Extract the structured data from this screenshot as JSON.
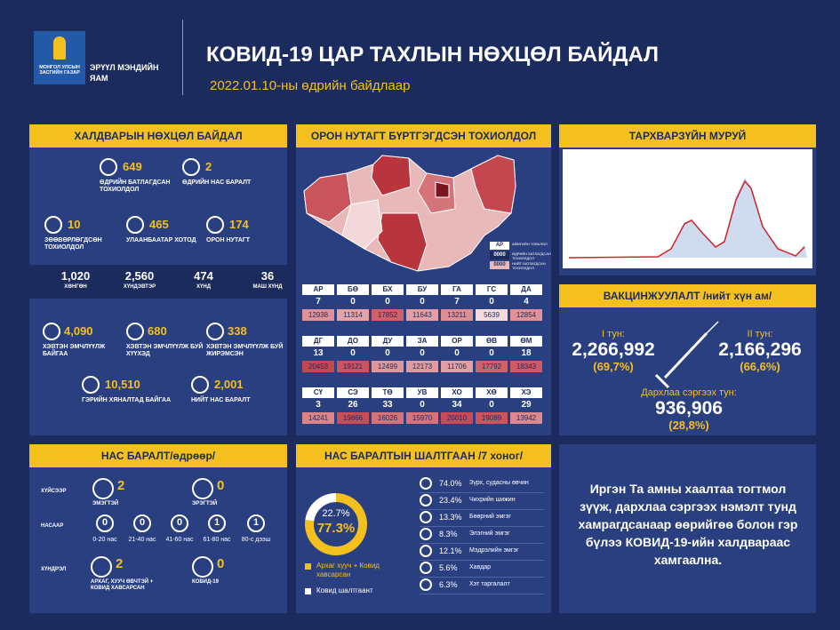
{
  "header": {
    "government": "МОНГОЛ УЛСЫН ЗАСГИЙН ГАЗАР",
    "ministry": "ЭРҮҮЛ МЭНДИЙН ЯАМ",
    "title": "КОВИД-19 ЦАР ТАХЛЫН НӨХЦӨЛ БАЙДАЛ",
    "subtitle": "2022.01.10-ны өдрийн байдлаар"
  },
  "infection": {
    "title": "ХАЛДВАРЫН НӨХЦӨЛ БАЙДАЛ",
    "items": [
      {
        "value": "649",
        "label": "ӨДРИЙН БАТЛАГДСАН ТОХИОЛДОЛ"
      },
      {
        "value": "2",
        "label": "ӨДРИЙН НАС БАРАЛТ"
      },
      {
        "value": "10",
        "label": "ЗӨӨВӨРЛӨГДСӨН ТОХИОЛДОЛ"
      },
      {
        "value": "465",
        "label": "УЛААНБААТАР ХОТОД"
      },
      {
        "value": "174",
        "label": "ОРОН НУТАГТ"
      },
      {
        "value": "4,090",
        "label": "ХЭВТЭН ЭМЧЛҮҮЛЖ БАЙГАА"
      },
      {
        "value": "680",
        "label": "ХЭВТЭН ЭМЧЛҮҮЛЖ БУЙ ХҮҮХЭД"
      },
      {
        "value": "338",
        "label": "ХЭВТЭН ЭМЧЛҮҮЛЖ БУЙ ЖИРЭМСЭН"
      },
      {
        "value": "10,510",
        "label": "ГЭРИЙН ХЯНАЛТАД БАЙГАА"
      },
      {
        "value": "2,001",
        "label": "НИЙТ НАС БАРАЛТ"
      }
    ],
    "severity": [
      {
        "value": "1,020",
        "label": "ХӨНГӨН"
      },
      {
        "value": "2,560",
        "label": "ХҮНДЭВТЭР"
      },
      {
        "value": "474",
        "label": "ХҮНД"
      },
      {
        "value": "36",
        "label": "МАШ ХҮНД"
      }
    ]
  },
  "map": {
    "title": "ОРОН НУТАГТ БҮРТГЭГДСЭН ТОХИОЛДОЛ",
    "legend": [
      {
        "sample": "АР",
        "label": "АЙМГИЙН ТОВЧЛОЛ"
      },
      {
        "sample": "0000",
        "label": "ӨДРИЙН БАТЛАГДСАН ТОХИОЛДОЛ"
      },
      {
        "sample": "0000",
        "label": "НИЙТ БАТЛАГДСАН ТОХИОЛДОЛ"
      }
    ],
    "codes": [
      "АР",
      "БӨ",
      "БХ",
      "БУ",
      "ГА",
      "ГС",
      "ДА",
      "ДГ",
      "ДО",
      "ДУ",
      "ЗА",
      "ОР",
      "ӨВ",
      "ӨМ",
      "СҮ",
      "СЭ",
      "ТӨ",
      "УВ",
      "ХО",
      "ХӨ",
      "ХЭ"
    ],
    "daily": [
      7,
      0,
      0,
      0,
      7,
      0,
      4,
      13,
      0,
      0,
      0,
      0,
      0,
      18,
      3,
      26,
      33,
      0,
      34,
      0,
      29
    ],
    "total": [
      12938,
      11314,
      17852,
      11643,
      13211,
      5639,
      12854,
      20453,
      19121,
      12499,
      12173,
      11706,
      17792,
      18343,
      14241,
      19866,
      16026,
      15970,
      20010,
      19089,
      13942
    ]
  },
  "curve": {
    "title": "ТАРХВАРЗҮЙН МУРУЙ"
  },
  "vaccination": {
    "title": "ВАКЦИНЖУУЛАЛТ /нийт хүн ам/",
    "doses": [
      {
        "label": "I тун:",
        "value": "2,266,992",
        "percent": "(69,7%)"
      },
      {
        "label": "II тун:",
        "value": "2,166,296",
        "percent": "(66,6%)"
      },
      {
        "label": "Дархлаа сэргээх тун:",
        "value": "936,906",
        "percent": "(28,8%)"
      }
    ]
  },
  "deaths": {
    "title": "НАС БАРАЛТ/өдрөөр/",
    "sex": {
      "label": "ХҮЙСЭЭР",
      "items": [
        {
          "value": "2",
          "label": "ЭМЭГТЭЙ"
        },
        {
          "value": "0",
          "label": "ЭРЭГТЭЙ"
        }
      ]
    },
    "age": {
      "label": "НАСААР",
      "items": [
        {
          "value": "0",
          "label": "0-20 нас"
        },
        {
          "value": "0",
          "label": "21-40 нас"
        },
        {
          "value": "0",
          "label": "41-60 нас"
        },
        {
          "value": "1",
          "label": "61-80 нас"
        },
        {
          "value": "1",
          "label": "80-с дээш"
        }
      ]
    },
    "complication": {
      "label": "ХҮНДРЭЛ",
      "items": [
        {
          "value": "2",
          "label": "АРХАГ, ХУУЧ ӨВЧТЭЙ + КОВИД ХАВСАРСАН"
        },
        {
          "value": "0",
          "label": "КОВИД-19"
        }
      ]
    }
  },
  "causes": {
    "title": "НАС БАРАЛТЫН ШАЛТГААН /7 хоног/",
    "donut": {
      "values": [
        77.3,
        22.7
      ],
      "value_labels": [
        "77.3%",
        "22.7%"
      ],
      "labels": [
        "Архаг хууч + Ковид хавсарсан",
        "Ковид шалтгаант"
      ],
      "colors": [
        "#f4c01e",
        "#ffffff"
      ]
    },
    "values": [
      74.0,
      23.4,
      13.3,
      8.3,
      12.1,
      5.6,
      6.3
    ],
    "value_labels": [
      "74.0%",
      "23.4%",
      "13.3%",
      "8.3%",
      "12.1%",
      "5.6%",
      "6.3%"
    ],
    "names": [
      "Зүрх, судасны өвчин",
      "Чихрийн шижин",
      "Бөөрний эмгэг",
      "Элэгний эмгэг",
      "Мэдрэлийн эмгэг",
      "Хавдар",
      "Хэт таргалалт"
    ]
  },
  "message": "Иргэн Та амны хаалтаа тогтмол зүүж, дархлаа сэргээх нэмэлт тунд хамрагдсанаар өөрийгөө болон гэр бүлээ КОВИД-19-ийн халдвараас хамгаална."
}
